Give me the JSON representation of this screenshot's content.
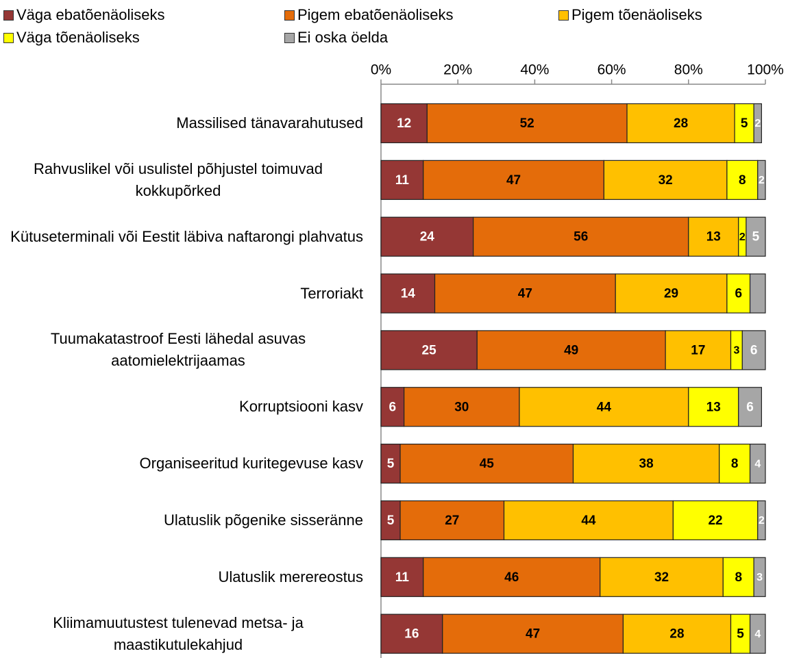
{
  "chart_data": {
    "type": "stacked_barh",
    "categories": [
      "Massilised tänavarahutused",
      "Rahvuslikel või usulistel põhjustel toimuvad kokkupõrked",
      "Kütuseterminali või Eestit läbiva naftarongi plahvatus",
      "Terroriakt",
      "Tuumakatastroof Eesti lähedal asuvas aatomielektrijaamas",
      "Korruptsiooni kasv",
      "Organiseeritud kuritegevuse kasv",
      "Ulatuslik põgenike sisseränne",
      "Ulatuslik merereostus",
      "Kliimamuutustest tulenevad metsa- ja maastikutulekahjud"
    ],
    "series": [
      {
        "name": "Väga ebatõenäoliseks",
        "color": "#953735",
        "label_color": "#ffffff",
        "values": [
          12,
          11,
          24,
          14,
          25,
          6,
          5,
          5,
          11,
          16
        ]
      },
      {
        "name": "Pigem ebatõenäoliseks",
        "color": "#e46c0a",
        "label_color": "#000000",
        "values": [
          52,
          47,
          56,
          47,
          49,
          30,
          45,
          27,
          46,
          47
        ]
      },
      {
        "name": "Pigem tõenäoliseks",
        "color": "#ffc000",
        "label_color": "#000000",
        "values": [
          28,
          32,
          13,
          29,
          17,
          44,
          38,
          44,
          32,
          28
        ]
      },
      {
        "name": "Väga tõenäoliseks",
        "color": "#ffff00",
        "label_color": "#000000",
        "values": [
          5,
          8,
          2,
          6,
          3,
          13,
          8,
          22,
          8,
          5
        ]
      },
      {
        "name": "Ei oska öelda",
        "color": "#a6a6a6",
        "label_color": "#ffffff",
        "values": [
          2,
          2,
          5,
          4,
          6,
          6,
          4,
          2,
          3,
          4
        ],
        "value_labels": [
          "2",
          "2",
          "5",
          null,
          "6",
          "6",
          "4",
          "2",
          "3",
          "4"
        ]
      }
    ],
    "xlim": [
      0,
      100
    ],
    "xticks": [
      {
        "value": 0,
        "label": "0%"
      },
      {
        "value": 20,
        "label": "20%"
      },
      {
        "value": 40,
        "label": "40%"
      },
      {
        "value": 60,
        "label": "60%"
      },
      {
        "value": 80,
        "label": "80%"
      },
      {
        "value": 100,
        "label": "100%"
      }
    ],
    "legend": "top"
  }
}
